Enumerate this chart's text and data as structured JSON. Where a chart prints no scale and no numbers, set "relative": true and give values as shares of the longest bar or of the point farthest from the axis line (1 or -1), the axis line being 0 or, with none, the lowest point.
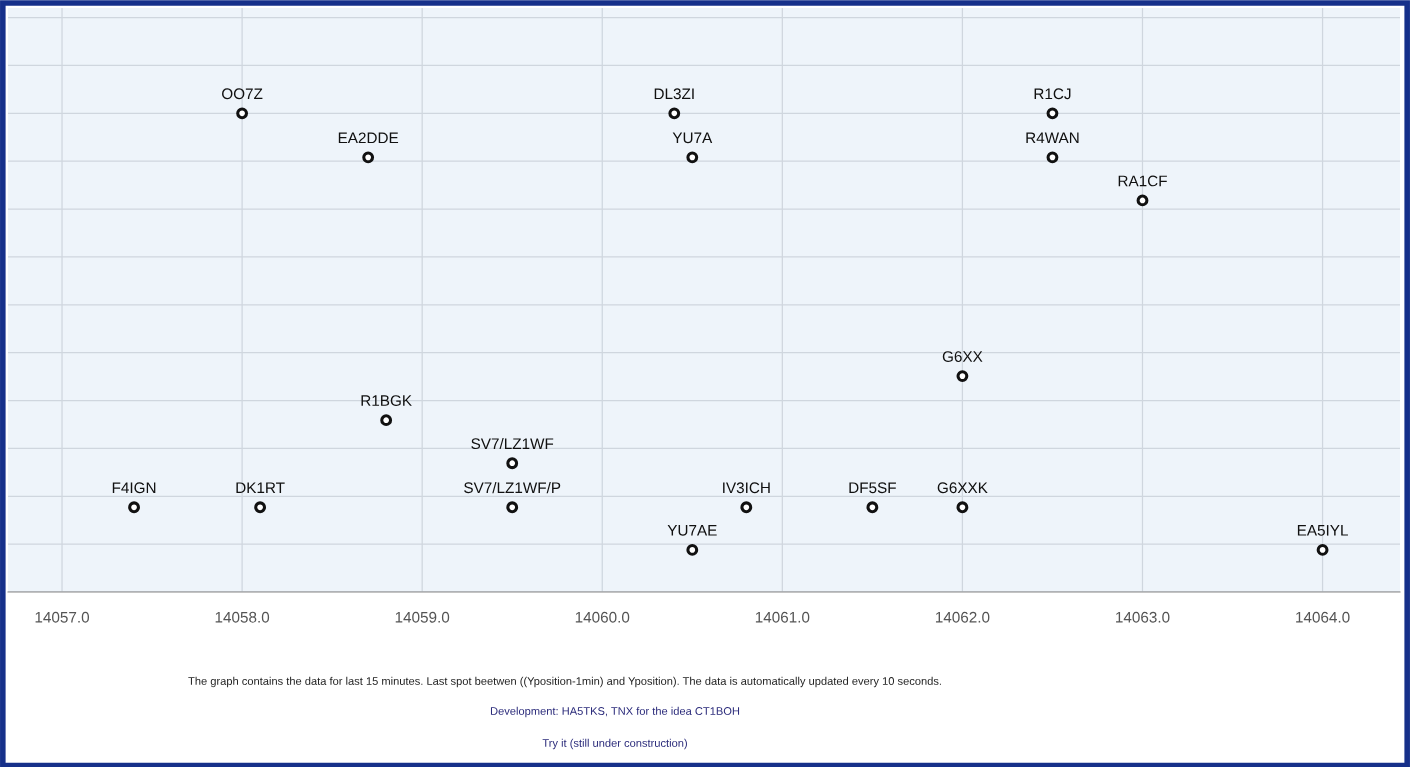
{
  "chart_data": {
    "type": "scatter",
    "relative": true,
    "x": [
      14058.0,
      14060.4,
      14062.5,
      14058.7,
      14060.5,
      14062.5,
      14063.0,
      14062.0,
      14058.8,
      14059.5,
      14057.4,
      14058.1,
      14059.5,
      14060.8,
      14061.5,
      14062.0,
      14060.5,
      14064.0
    ],
    "series": [
      {
        "color": "#111111",
        "values": [
          1,
          1,
          1,
          0.908,
          0.908,
          0.908,
          0.818,
          0.451,
          0.359,
          0.269,
          0.177,
          0.177,
          0.177,
          0.177,
          0.177,
          0.177,
          0.088,
          0.088
        ]
      }
    ],
    "marker": "circle",
    "grid": true,
    "legend": false,
    "tick_labels": "x",
    "xlim": [
      14056.7,
      14064.43
    ],
    "xticks": [
      {
        "value": 14057,
        "label": "14057.0"
      },
      {
        "value": 14058,
        "label": "14058.0"
      },
      {
        "value": 14059,
        "label": "14059.0"
      },
      {
        "value": 14060,
        "label": "14060.0"
      },
      {
        "value": 14061,
        "label": "14061.0"
      },
      {
        "value": 14062,
        "label": "14062.0"
      },
      {
        "value": 14063,
        "label": "14063.0"
      },
      {
        "value": 14064,
        "label": "14064.0"
      }
    ],
    "annotations": [
      {
        "text": "OO7Z",
        "x": 14058.0,
        "y": 1
      },
      {
        "text": "DL3ZI",
        "x": 14060.4,
        "y": 1
      },
      {
        "text": "R1CJ",
        "x": 14062.5,
        "y": 1
      },
      {
        "text": "EA2DDE",
        "x": 14058.7,
        "y": 0.908
      },
      {
        "text": "YU7A",
        "x": 14060.5,
        "y": 0.908
      },
      {
        "text": "R4WAN",
        "x": 14062.5,
        "y": 0.908
      },
      {
        "text": "RA1CF",
        "x": 14063.0,
        "y": 0.818
      },
      {
        "text": "G6XX",
        "x": 14062.0,
        "y": 0.451
      },
      {
        "text": "R1BGK",
        "x": 14058.8,
        "y": 0.359
      },
      {
        "text": "SV7/LZ1WF",
        "x": 14059.5,
        "y": 0.269
      },
      {
        "text": "F4IGN",
        "x": 14057.4,
        "y": 0.177
      },
      {
        "text": "DK1RT",
        "x": 14058.1,
        "y": 0.177
      },
      {
        "text": "SV7/LZ1WF/P",
        "x": 14059.5,
        "y": 0.177
      },
      {
        "text": "IV3ICH",
        "x": 14060.8,
        "y": 0.177
      },
      {
        "text": "DF5SF",
        "x": 14061.5,
        "y": 0.177
      },
      {
        "text": "G6XXK",
        "x": 14062.0,
        "y": 0.177
      },
      {
        "text": "YU7AE",
        "x": 14060.5,
        "y": 0.088
      },
      {
        "text": "EA5IYL",
        "x": 14064.0,
        "y": 0.088
      },
      "The graph contains the data for last 15 minutes. Last spot beetwen ((Yposition-1min) and Yposition). The data is automatically updated every 10 seconds.",
      "Development: HA5TKS, TNX for the idea CT1BOH",
      "Try it (still under construction)"
    ]
  }
}
